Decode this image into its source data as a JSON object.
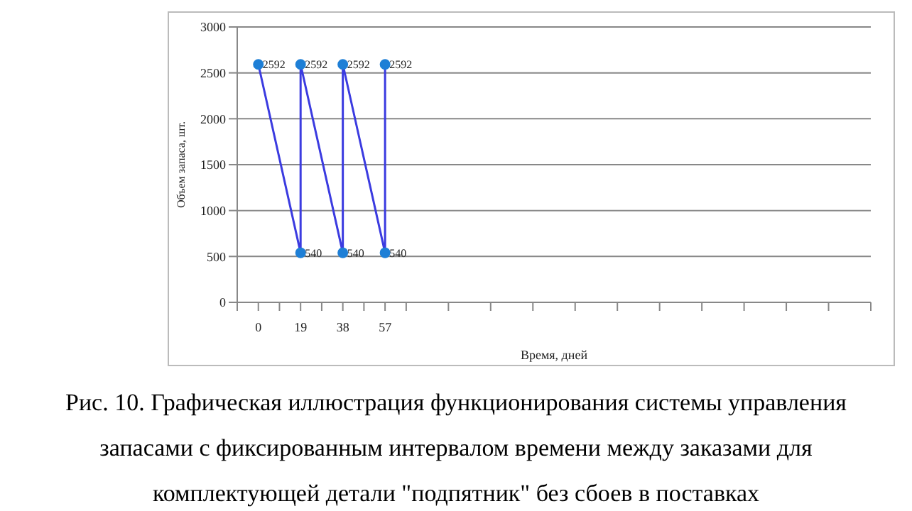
{
  "chart_data": {
    "type": "line",
    "title": "Рис. 10. Графическая иллюстрация функционирования системы управления запасами с фиксированным интервалом времени между заказами для комплектующей детали \"подпятник\" без сбоев в поставках",
    "xlabel": "Время, дней",
    "ylabel": "Объем запаса, шт.",
    "x": [
      0,
      19,
      19,
      38,
      38,
      57,
      57
    ],
    "series": [
      {
        "color": "#3b3be0",
        "values": [
          2592,
          540,
          2592,
          540,
          2592,
          540,
          2592
        ]
      }
    ],
    "xlim": [
      -9.5,
      275.5
    ],
    "xticks": [
      {
        "value": -9.5,
        "label": null
      },
      0,
      {
        "value": 9.5,
        "label": null
      },
      19,
      {
        "value": 28.5,
        "label": null
      },
      38,
      {
        "value": 47.5,
        "label": null
      },
      57,
      {
        "value": 66.5,
        "label": null
      },
      {
        "value": 85.5,
        "label": null
      },
      {
        "value": 104.5,
        "label": null
      },
      {
        "value": 123.5,
        "label": null
      },
      {
        "value": 142.5,
        "label": null
      },
      {
        "value": 161.5,
        "label": null
      },
      {
        "value": 180.5,
        "label": null
      },
      {
        "value": 199.5,
        "label": null
      },
      {
        "value": 218.5,
        "label": null
      },
      {
        "value": 237.5,
        "label": null
      },
      {
        "value": 256.5,
        "label": null
      },
      {
        "value": 275.5,
        "label": null
      }
    ],
    "ylim": [
      0,
      3000
    ],
    "yticks": [
      0,
      500,
      1000,
      1500,
      2000,
      2500,
      3000
    ],
    "grid": "y",
    "marker": "circle",
    "line_style": "solid",
    "data_labels": true
  }
}
